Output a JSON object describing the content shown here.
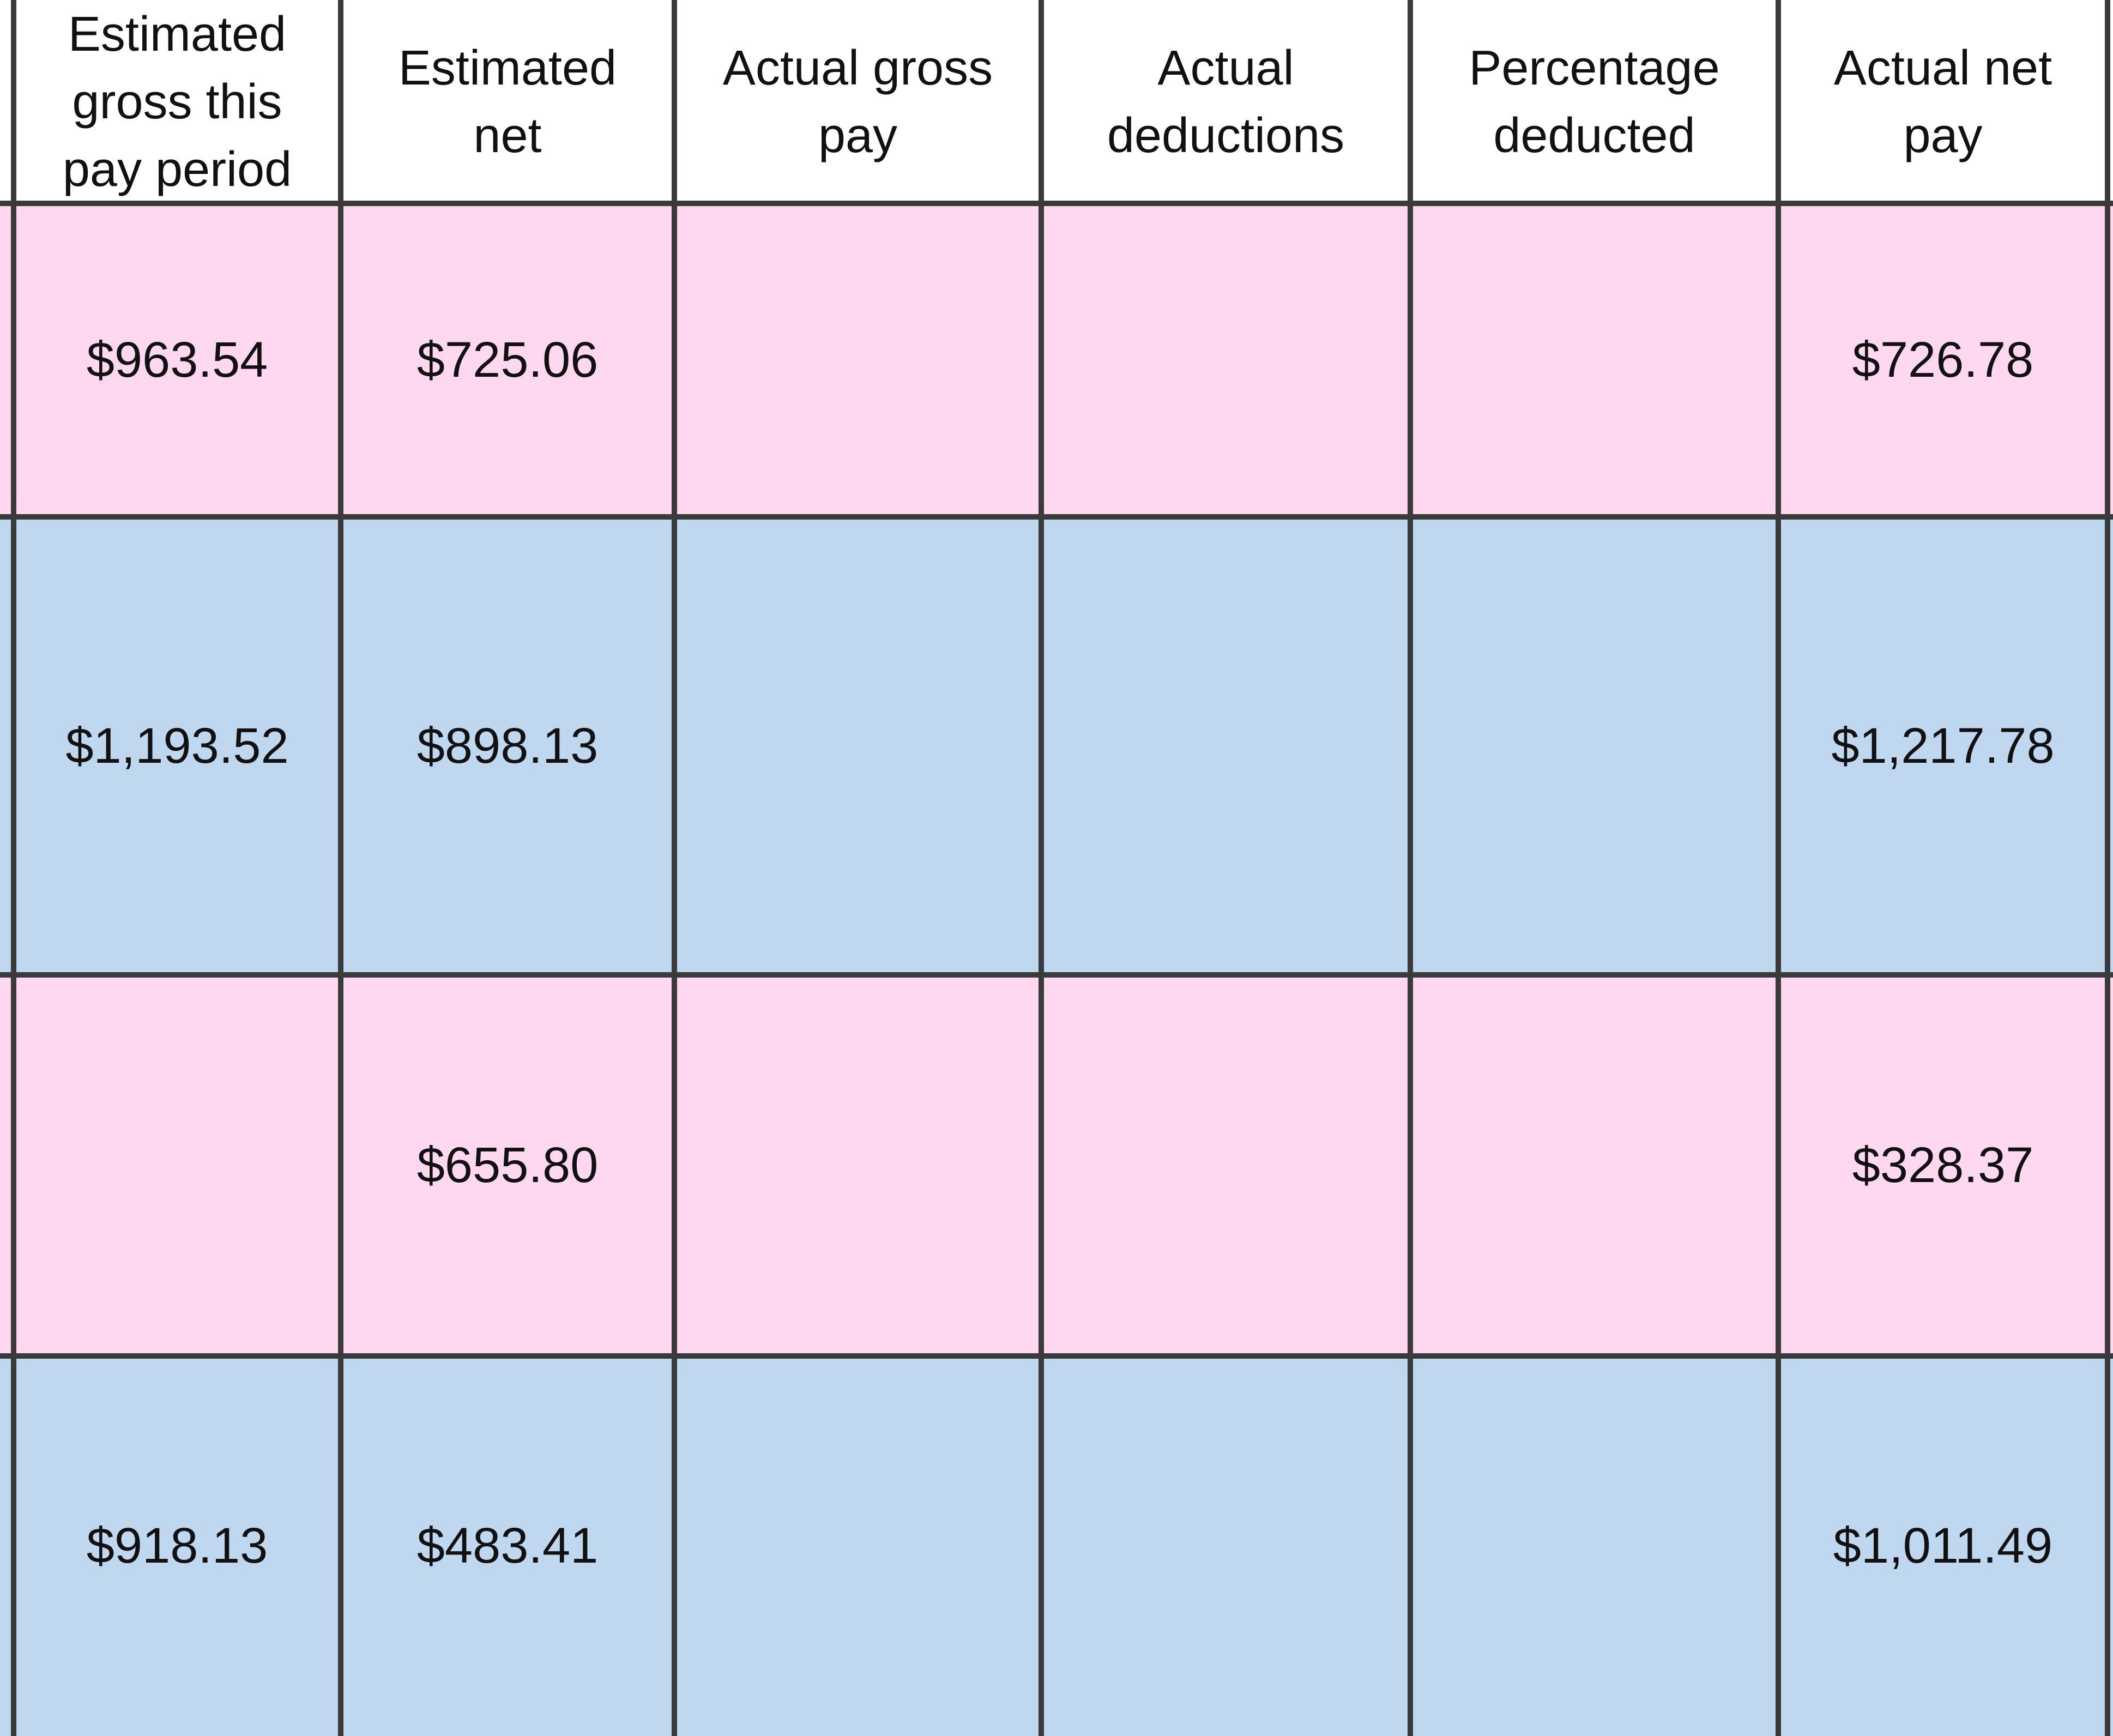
{
  "table": {
    "headers": [
      "Estimated\ngross this\npay period",
      "Estimated\nnet",
      "Actual gross\npay",
      "Actual\ndeductions",
      "Percentage\ndeducted",
      "Actual net\npay"
    ],
    "rows": [
      {
        "band": "pink",
        "cells": [
          "$963.54",
          "$725.06",
          "",
          "",
          "",
          "$726.78"
        ]
      },
      {
        "band": "blue",
        "cells": [
          "$1,193.52",
          "$898.13",
          "",
          "",
          "",
          "$1,217.78"
        ]
      },
      {
        "band": "pink",
        "cells": [
          "",
          "$655.80",
          "",
          "",
          "",
          "$328.37"
        ]
      },
      {
        "band": "blue",
        "cells": [
          "$918.13",
          "$483.41",
          "",
          "",
          "",
          "$1,011.49"
        ]
      }
    ]
  },
  "colors": {
    "pink_row": "#fdd8f0",
    "blue_row": "#c0d8ef",
    "gridline": "#3a3a3a",
    "header_bg": "#ffffff",
    "selection_accent": "#1f7a3f"
  }
}
